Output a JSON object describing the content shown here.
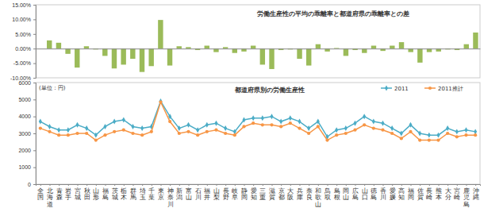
{
  "chart_data": [
    {
      "type": "bar",
      "title": "労働生産性の平均の乖離率と都道府県の乖離率との差",
      "values": [
        0,
        2.8,
        2.0,
        -1.8,
        -6.5,
        0.8,
        -0.3,
        -2.5,
        -6.8,
        -5.5,
        -3.5,
        -8,
        -6,
        9.8,
        -5.8,
        0.8,
        0.5,
        -0.5,
        1.0,
        -1.2,
        0.5,
        -1.5,
        -1.0,
        1.0,
        -5.5,
        -7,
        -0.5,
        -0.3,
        -3.5,
        -5.8,
        1.5,
        -1.0,
        0.2,
        -2.5,
        -0.5,
        -1.5,
        1.0,
        -0.8,
        1.0,
        2.2,
        -1.2,
        -4.8,
        -1.2,
        -1.0,
        -0.3,
        -0.5,
        1.5,
        5.5
      ],
      "color": "#9bbb59",
      "ylim": [
        -10,
        15
      ],
      "yticks": [
        {
          "value": -10,
          "label": "-10.00%"
        },
        {
          "value": -5,
          "label": "-5.00%"
        },
        {
          "value": 0,
          "label": "0.00%"
        },
        {
          "value": 5,
          "label": "5.00%"
        },
        {
          "value": 10,
          "label": "10.00%"
        },
        {
          "value": 15,
          "label": "15.00%"
        }
      ],
      "grid": false,
      "tick_labels": "y"
    },
    {
      "type": "line",
      "title": "都道府県別の労働生産性",
      "y_label": "(単位：円)",
      "categories": [
        "全国",
        "北海道",
        "青森",
        "岩手",
        "宮城",
        "秋田",
        "山形",
        "福島",
        "茨城",
        "栃木",
        "群馬",
        "埼玉",
        "千葉",
        "東京",
        "神奈川",
        "新潟",
        "富山",
        "石川",
        "福井",
        "山梨",
        "長野",
        "岐阜",
        "静岡",
        "愛知",
        "三重",
        "滋賀",
        "京都",
        "大阪",
        "兵庫",
        "奈良",
        "和歌山",
        "鳥取",
        "島根",
        "岡山",
        "広島",
        "山口",
        "徳島",
        "香川",
        "愛媛",
        "高知",
        "福岡",
        "佐賀",
        "長崎",
        "熊本",
        "大分",
        "宮崎",
        "鹿児島",
        "沖縄"
      ],
      "series": [
        {
          "name": "2011",
          "color": "#4bacc6",
          "marker": "diamond",
          "values": [
            3700,
            3400,
            3200,
            3200,
            3500,
            3300,
            2900,
            3400,
            3700,
            3800,
            3400,
            3300,
            3400,
            4900,
            4000,
            3300,
            3500,
            3200,
            3500,
            3600,
            3300,
            3100,
            3800,
            3900,
            3900,
            4000,
            3700,
            3900,
            3700,
            3300,
            3700,
            2800,
            3200,
            3300,
            3600,
            4000,
            3700,
            3600,
            3300,
            3000,
            3500,
            3000,
            2900,
            2900,
            3300,
            3100,
            3200,
            3100
          ]
        },
        {
          "name": "2011推計",
          "color": "#f79646",
          "marker": "circle",
          "values": [
            3300,
            3100,
            2900,
            2900,
            3000,
            3000,
            2600,
            2900,
            3100,
            3200,
            3000,
            2900,
            3100,
            4850,
            3700,
            3000,
            3100,
            2900,
            3100,
            3200,
            3000,
            2900,
            3400,
            3600,
            3500,
            3500,
            3400,
            3600,
            3300,
            3000,
            3400,
            2600,
            2900,
            3000,
            3200,
            3500,
            3300,
            3200,
            3000,
            2700,
            3100,
            2600,
            2600,
            2600,
            3000,
            2800,
            2900,
            2900
          ]
        }
      ],
      "ylim": [
        0,
        6000
      ],
      "yticks": [
        0,
        1000,
        2000,
        3000,
        4000,
        5000,
        6000
      ],
      "grid": false,
      "legend": "top-right"
    }
  ]
}
